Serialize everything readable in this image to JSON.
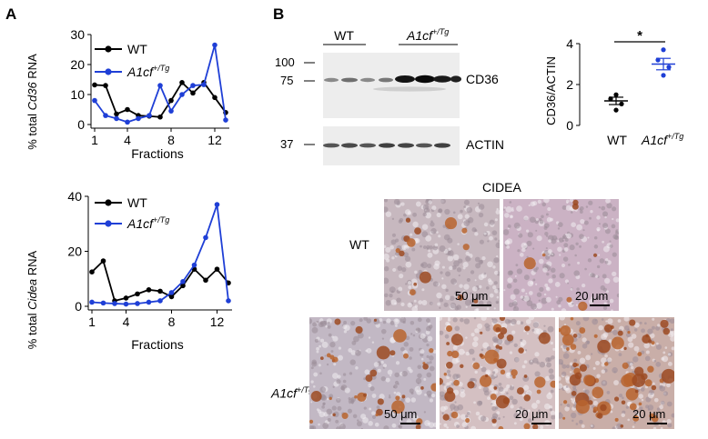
{
  "panels": {
    "a": "A",
    "b": "B"
  },
  "chart_data": [
    {
      "type": "line",
      "ylabel_prefix": "% total ",
      "ylabel_gene": "Cd36",
      "ylabel_suffix": " RNA",
      "xlabel": "Fractions",
      "x_ticks": [
        "1",
        "4",
        "8",
        "12"
      ],
      "y_ticks": [
        "0",
        "10",
        "20",
        "30"
      ],
      "ylim": [
        0,
        30
      ],
      "xlim": [
        1,
        13
      ],
      "legend": {
        "wt": "WT",
        "tg_gene": "A1cf",
        "tg_sup": "+/Tg"
      },
      "x": [
        1,
        2,
        3,
        4,
        5,
        6,
        7,
        8,
        9,
        10,
        11,
        12,
        13
      ],
      "series": [
        {
          "name": "WT",
          "color": "#000000",
          "values": [
            13.2,
            13,
            3.5,
            5,
            3,
            2.8,
            2.5,
            8,
            14,
            10.5,
            14,
            9,
            4
          ]
        },
        {
          "name": "A1cf+/Tg",
          "color": "#1f3fd6",
          "values": [
            8,
            3,
            2,
            0.8,
            2,
            3,
            13,
            4.5,
            10,
            13,
            13.3,
            26.5,
            1.5
          ]
        }
      ]
    },
    {
      "type": "line",
      "ylabel_prefix": "% total ",
      "ylabel_gene": "Cidea",
      "ylabel_suffix": " RNA",
      "xlabel": "Fractions",
      "x_ticks": [
        "1",
        "4",
        "8",
        "12"
      ],
      "y_ticks": [
        "0",
        "20",
        "40"
      ],
      "ylim": [
        0,
        40
      ],
      "xlim": [
        1,
        13
      ],
      "legend": {
        "wt": "WT",
        "tg_gene": "A1cf",
        "tg_sup": "+/Tg"
      },
      "x": [
        1,
        2,
        3,
        4,
        5,
        6,
        7,
        8,
        9,
        10,
        11,
        12,
        13
      ],
      "series": [
        {
          "name": "WT",
          "color": "#000000",
          "values": [
            12.5,
            16.5,
            2,
            3,
            4.5,
            6,
            5.5,
            3.5,
            7.5,
            13.5,
            9.5,
            13.5,
            8.5
          ]
        },
        {
          "name": "A1cf+/Tg",
          "color": "#1f3fd6",
          "values": [
            1.5,
            1.2,
            1,
            0.8,
            1,
            1.5,
            2,
            5,
            9,
            15,
            25,
            37,
            2
          ]
        }
      ]
    },
    {
      "type": "scatter",
      "ylabel": "CD36/ACTIN",
      "y_ticks": [
        "0",
        "2",
        "4"
      ],
      "ylim": [
        0,
        4
      ],
      "categories": [
        "WT",
        "A1cf"
      ],
      "tg_sup": "+/Tg",
      "significance": "*",
      "groups": [
        {
          "name": "WT",
          "color": "#000000",
          "points": [
            1.5,
            1.3,
            1.05,
            0.75
          ],
          "mean": 1.2,
          "sem": 0.18
        },
        {
          "name": "A1cf+/Tg",
          "color": "#1f3fd6",
          "points": [
            3.7,
            3.2,
            2.85,
            2.45
          ],
          "mean": 3.0,
          "sem": 0.28
        }
      ]
    }
  ],
  "blot": {
    "group_wt": "WT",
    "group_tg_gene": "A1cf",
    "group_tg_sup": "+/Tg",
    "mw_100": "100",
    "mw_75": "75",
    "mw_37": "37",
    "band_cd36": "CD36",
    "band_actin": "ACTIN"
  },
  "histology": {
    "title": "CIDEA",
    "row_wt": "WT",
    "row_tg_gene": "A1cf",
    "row_tg_sup": "+/Tg",
    "scale_50": "50 μm",
    "scale_20": "20 μm"
  }
}
